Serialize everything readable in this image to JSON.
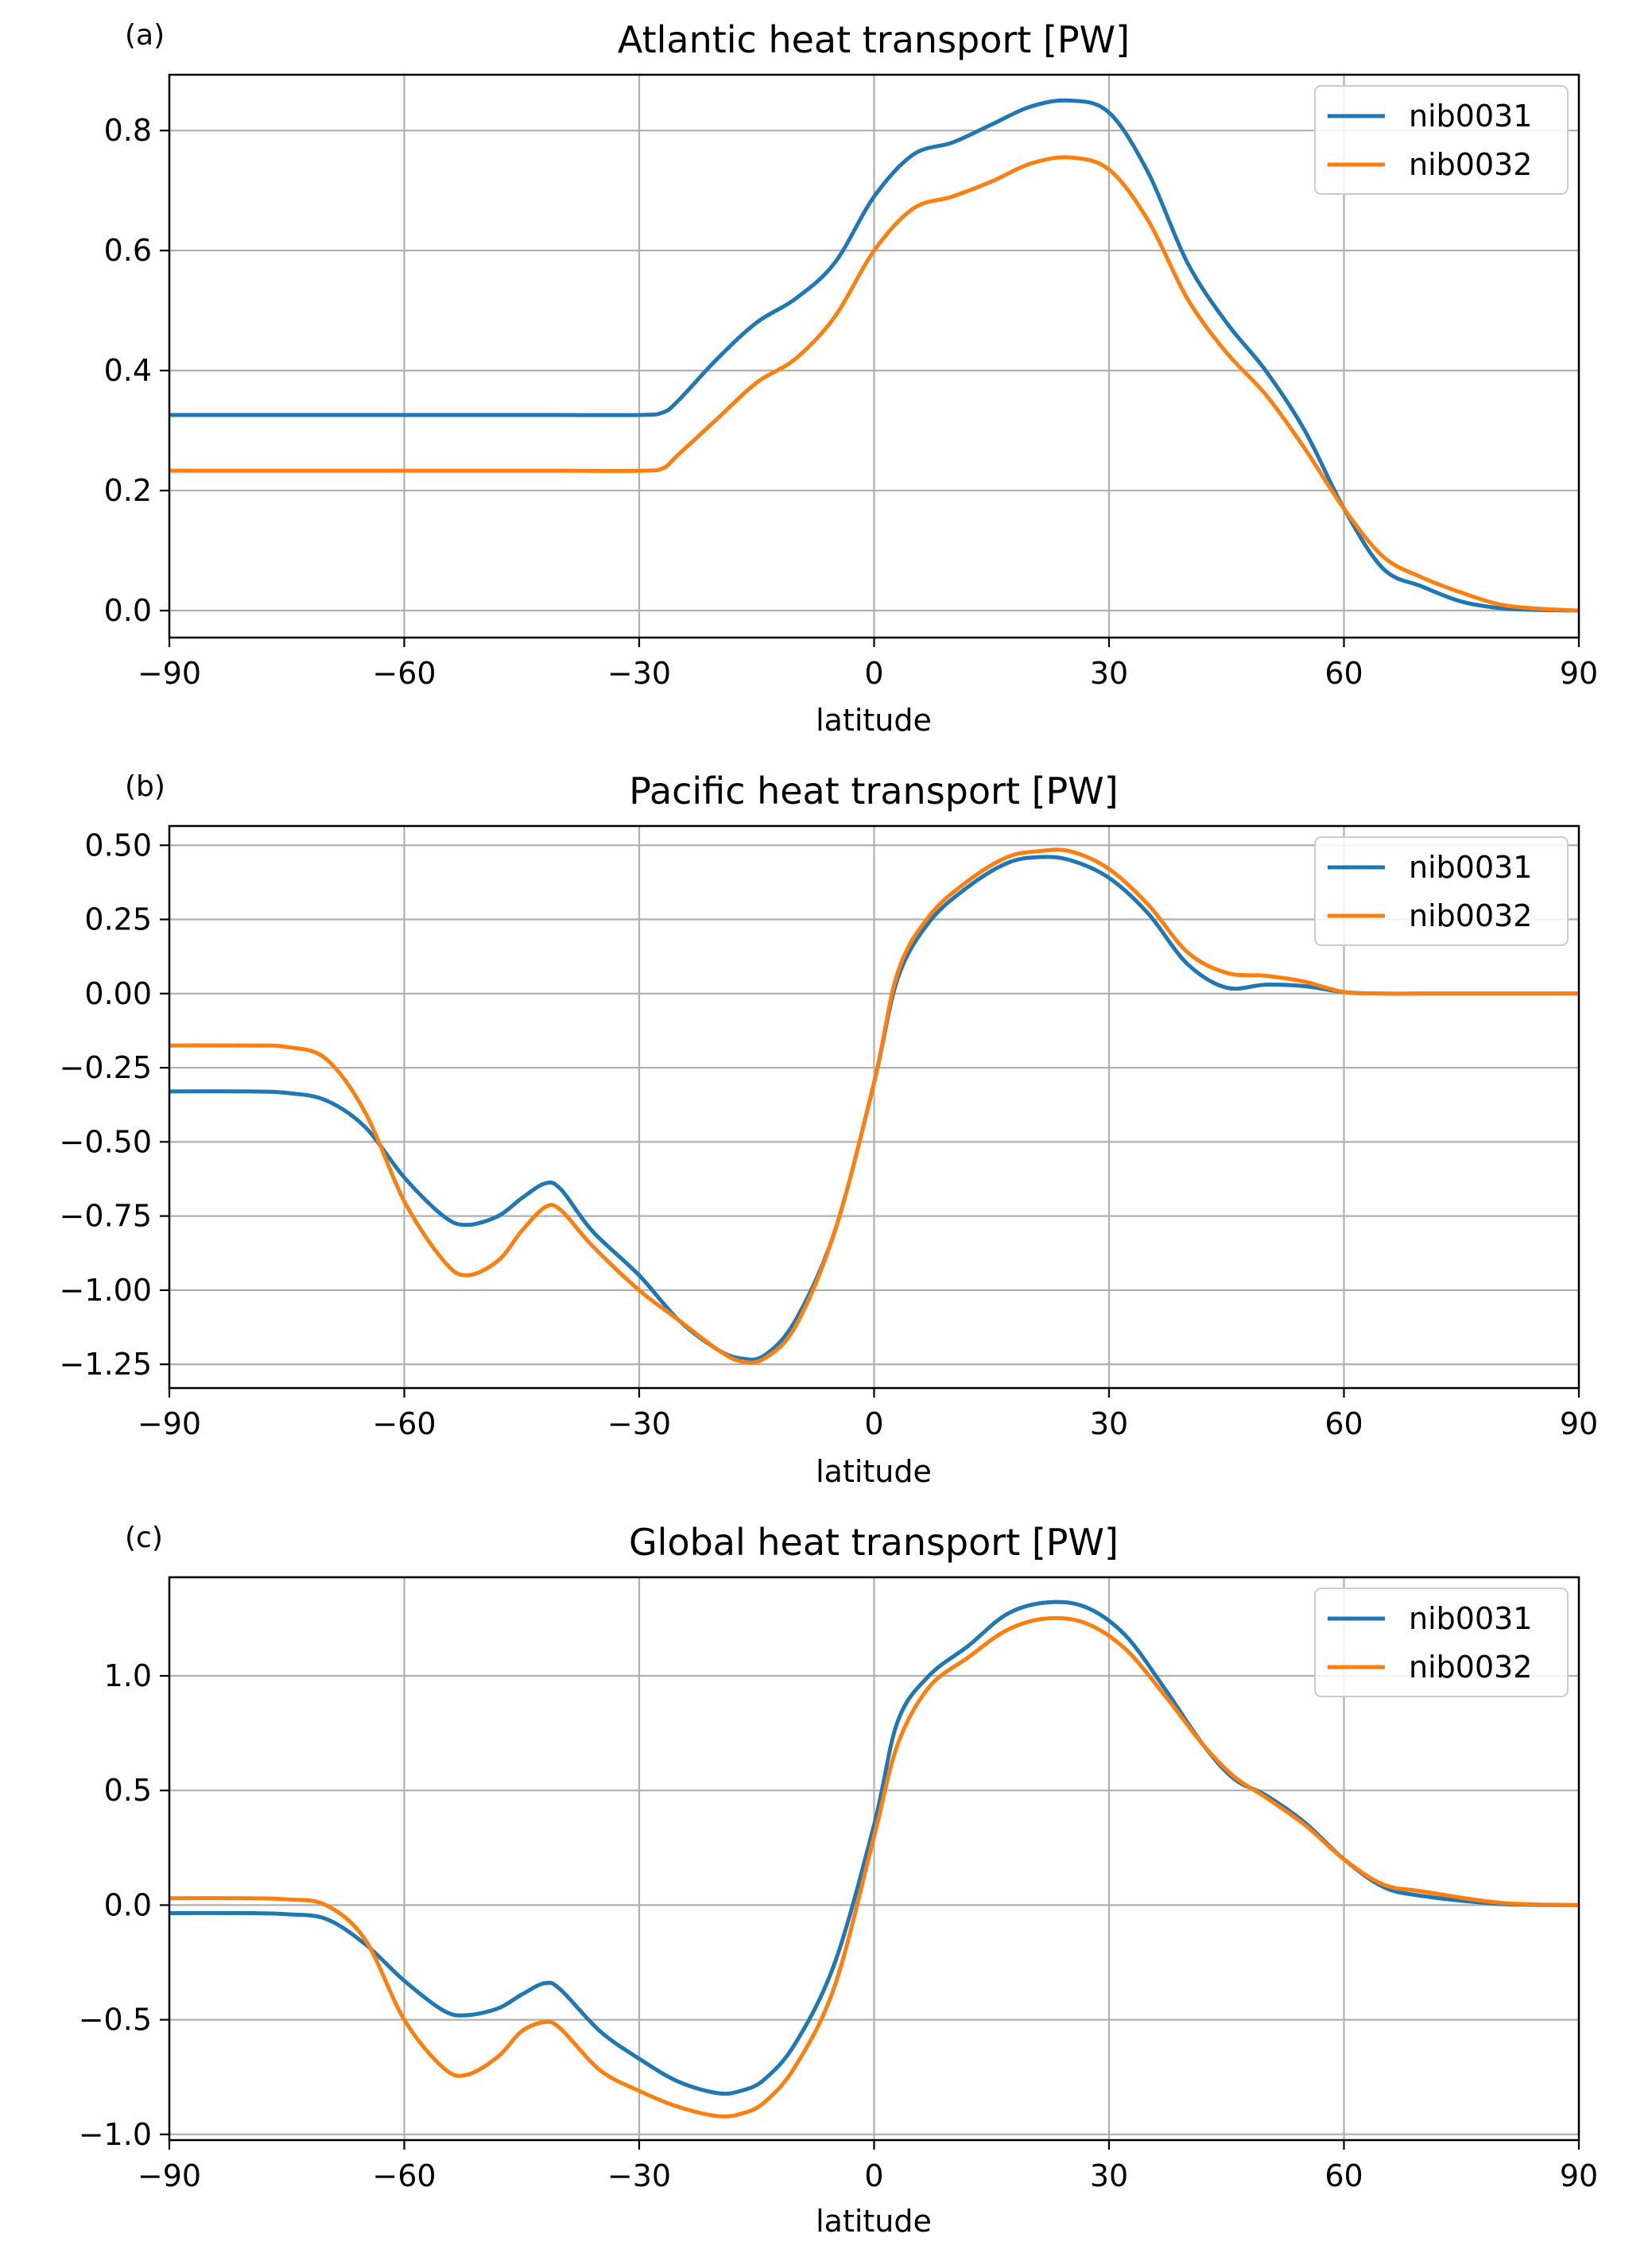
{
  "chart_data": [
    {
      "type": "line",
      "panel_label": "(a)",
      "title": "Atlantic heat transport [PW]",
      "xlabel": "latitude",
      "ylabel": "",
      "xlim": [
        -90,
        90
      ],
      "ylim": [
        -0.045,
        0.893
      ],
      "xticks": [
        -90,
        -60,
        -30,
        0,
        30,
        60,
        90
      ],
      "xtick_labels": [
        "−90",
        "−60",
        "−30",
        "0",
        "30",
        "60",
        "90"
      ],
      "yticks": [
        0.0,
        0.2,
        0.4,
        0.6,
        0.8
      ],
      "ytick_labels": [
        "0.0",
        "0.2",
        "0.4",
        "0.6",
        "0.8"
      ],
      "grid": true,
      "legend_position": "top-right",
      "series": [
        {
          "name": "nib0031",
          "color": "#1f77b4",
          "x": [
            -90,
            -80,
            -70,
            -60,
            -50,
            -40,
            -30,
            -27,
            -25,
            -20,
            -15,
            -10,
            -5,
            0,
            5,
            10,
            15,
            20,
            25,
            30,
            35,
            40,
            45,
            50,
            55,
            60,
            65,
            70,
            75,
            80,
            85,
            90
          ],
          "y": [
            0.326,
            0.326,
            0.326,
            0.326,
            0.326,
            0.326,
            0.326,
            0.33,
            0.35,
            0.42,
            0.48,
            0.52,
            0.58,
            0.69,
            0.76,
            0.78,
            0.81,
            0.84,
            0.85,
            0.83,
            0.73,
            0.58,
            0.48,
            0.4,
            0.3,
            0.17,
            0.07,
            0.04,
            0.015,
            0.004,
            0.001,
            0.0
          ]
        },
        {
          "name": "nib0032",
          "color": "#ff7f0e",
          "x": [
            -90,
            -80,
            -70,
            -60,
            -50,
            -40,
            -30,
            -27,
            -25,
            -20,
            -15,
            -10,
            -5,
            0,
            5,
            10,
            15,
            20,
            25,
            30,
            35,
            40,
            45,
            50,
            55,
            60,
            65,
            70,
            75,
            80,
            85,
            90
          ],
          "y": [
            0.233,
            0.233,
            0.233,
            0.233,
            0.233,
            0.233,
            0.233,
            0.237,
            0.26,
            0.32,
            0.38,
            0.42,
            0.49,
            0.6,
            0.67,
            0.69,
            0.715,
            0.745,
            0.755,
            0.735,
            0.65,
            0.52,
            0.43,
            0.36,
            0.27,
            0.17,
            0.09,
            0.055,
            0.03,
            0.01,
            0.003,
            0.0
          ]
        }
      ]
    },
    {
      "type": "line",
      "panel_label": "(b)",
      "title": "Pacific heat transport [PW]",
      "xlabel": "latitude",
      "ylabel": "",
      "xlim": [
        -90,
        90
      ],
      "ylim": [
        -1.33,
        0.565
      ],
      "xticks": [
        -90,
        -60,
        -30,
        0,
        30,
        60,
        90
      ],
      "xtick_labels": [
        "−90",
        "−60",
        "−30",
        "0",
        "30",
        "60",
        "90"
      ],
      "yticks": [
        -1.25,
        -1.0,
        -0.75,
        -0.5,
        -0.25,
        0.0,
        0.25,
        0.5
      ],
      "ytick_labels": [
        "−1.25",
        "−1.00",
        "−0.75",
        "−0.50",
        "−0.25",
        "0.00",
        "0.25",
        "0.50"
      ],
      "grid": true,
      "legend_position": "top-right",
      "series": [
        {
          "name": "nib0031",
          "color": "#1f77b4",
          "x": [
            -90,
            -80,
            -75,
            -70,
            -65,
            -60,
            -55,
            -52,
            -48,
            -45,
            -42,
            -40,
            -36,
            -30,
            -25,
            -20,
            -17,
            -14,
            -10,
            -5,
            0,
            3,
            7,
            12,
            17,
            21,
            25,
            30,
            35,
            40,
            45,
            50,
            55,
            60,
            65,
            70,
            80,
            90
          ],
          "y": [
            -0.33,
            -0.33,
            -0.335,
            -0.36,
            -0.45,
            -0.62,
            -0.75,
            -0.78,
            -0.75,
            -0.69,
            -0.64,
            -0.66,
            -0.8,
            -0.95,
            -1.1,
            -1.2,
            -1.23,
            -1.22,
            -1.1,
            -0.8,
            -0.3,
            0.05,
            0.24,
            0.36,
            0.44,
            0.46,
            0.45,
            0.39,
            0.27,
            0.1,
            0.02,
            0.03,
            0.025,
            0.005,
            0.0,
            0.0,
            0.0,
            0.0
          ]
        },
        {
          "name": "nib0032",
          "color": "#ff7f0e",
          "x": [
            -90,
            -80,
            -75,
            -70,
            -65,
            -60,
            -55,
            -52,
            -48,
            -45,
            -42,
            -40,
            -36,
            -30,
            -25,
            -20,
            -17,
            -14,
            -10,
            -5,
            0,
            3,
            7,
            12,
            17,
            21,
            25,
            30,
            35,
            40,
            45,
            50,
            55,
            60,
            65,
            70,
            80,
            90
          ],
          "y": [
            -0.175,
            -0.175,
            -0.18,
            -0.22,
            -0.4,
            -0.7,
            -0.9,
            -0.95,
            -0.9,
            -0.8,
            -0.72,
            -0.73,
            -0.85,
            -1.0,
            -1.1,
            -1.2,
            -1.24,
            -1.23,
            -1.12,
            -0.8,
            -0.3,
            0.07,
            0.26,
            0.38,
            0.46,
            0.48,
            0.48,
            0.42,
            0.3,
            0.14,
            0.07,
            0.06,
            0.04,
            0.005,
            0.0,
            0.0,
            0.0,
            0.0
          ]
        }
      ]
    },
    {
      "type": "line",
      "panel_label": "(c)",
      "title": "Global heat transport [PW]",
      "xlabel": "latitude",
      "ylabel": "",
      "xlim": [
        -90,
        90
      ],
      "ylim": [
        -1.025,
        1.43
      ],
      "xticks": [
        -90,
        -60,
        -30,
        0,
        30,
        60,
        90
      ],
      "xtick_labels": [
        "−90",
        "−60",
        "−30",
        "0",
        "30",
        "60",
        "90"
      ],
      "yticks": [
        -1.0,
        -0.5,
        0.0,
        0.5,
        1.0
      ],
      "ytick_labels": [
        "−1.0",
        "−0.5",
        "0.0",
        "0.5",
        "1.0"
      ],
      "grid": true,
      "legend_position": "top-right",
      "series": [
        {
          "name": "nib0031",
          "color": "#1f77b4",
          "x": [
            -90,
            -80,
            -75,
            -70,
            -65,
            -60,
            -55,
            -52,
            -48,
            -45,
            -42,
            -40,
            -35,
            -30,
            -25,
            -20,
            -17,
            -14,
            -10,
            -5,
            0,
            3,
            7,
            12,
            17,
            22,
            27,
            32,
            37,
            42,
            46,
            50,
            55,
            60,
            65,
            70,
            80,
            90
          ],
          "y": [
            -0.035,
            -0.035,
            -0.04,
            -0.06,
            -0.17,
            -0.33,
            -0.46,
            -0.48,
            -0.45,
            -0.39,
            -0.34,
            -0.37,
            -0.55,
            -0.67,
            -0.77,
            -0.82,
            -0.81,
            -0.76,
            -0.6,
            -0.25,
            0.35,
            0.8,
            1.0,
            1.13,
            1.27,
            1.32,
            1.3,
            1.18,
            0.95,
            0.7,
            0.55,
            0.48,
            0.36,
            0.2,
            0.08,
            0.04,
            0.005,
            0.0
          ]
        },
        {
          "name": "nib0032",
          "color": "#ff7f0e",
          "x": [
            -90,
            -80,
            -75,
            -70,
            -65,
            -60,
            -55,
            -52,
            -48,
            -45,
            -42,
            -40,
            -35,
            -30,
            -25,
            -20,
            -17,
            -14,
            -10,
            -5,
            0,
            3,
            7,
            12,
            17,
            22,
            27,
            32,
            37,
            42,
            46,
            50,
            55,
            60,
            65,
            70,
            80,
            90
          ],
          "y": [
            0.03,
            0.03,
            0.025,
            0.0,
            -0.15,
            -0.5,
            -0.71,
            -0.74,
            -0.66,
            -0.55,
            -0.51,
            -0.54,
            -0.72,
            -0.81,
            -0.88,
            -0.92,
            -0.91,
            -0.86,
            -0.7,
            -0.35,
            0.3,
            0.7,
            0.95,
            1.08,
            1.2,
            1.25,
            1.23,
            1.12,
            0.92,
            0.7,
            0.56,
            0.47,
            0.35,
            0.2,
            0.09,
            0.06,
            0.01,
            0.0
          ]
        }
      ]
    }
  ]
}
